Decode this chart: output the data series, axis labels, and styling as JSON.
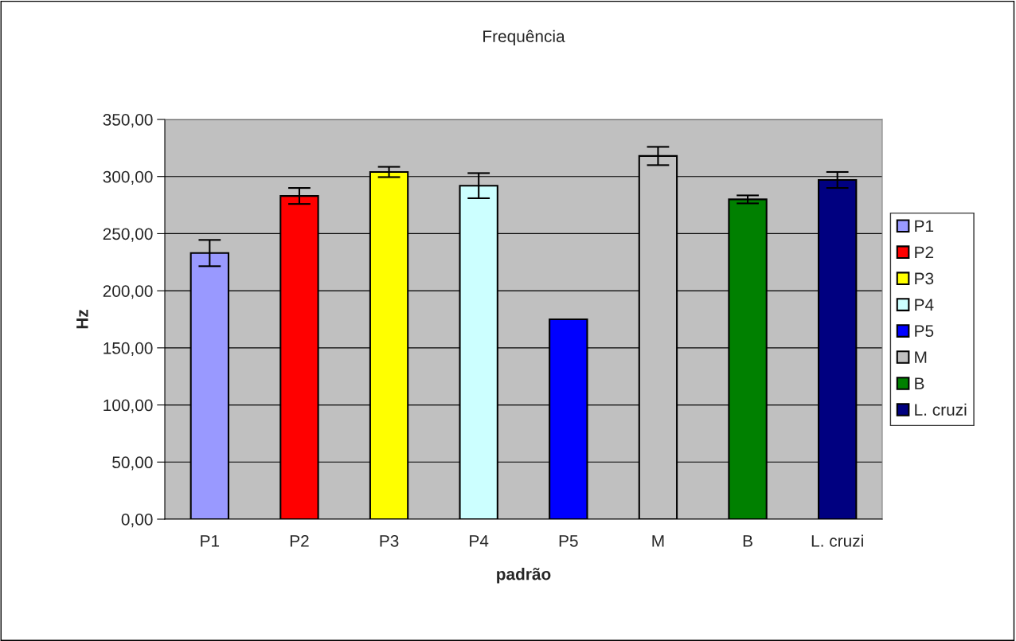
{
  "chart_data": {
    "type": "bar",
    "title": "Frequência",
    "xlabel": "padrão",
    "ylabel": "Hz",
    "categories": [
      "P1",
      "P2",
      "P3",
      "P4",
      "P5",
      "M",
      "B",
      "L. cruzi"
    ],
    "series": [
      {
        "name": "P1",
        "color": "#9999ff",
        "values": [
          233,
          null,
          null,
          null,
          null,
          null,
          null,
          null
        ],
        "errors": [
          11.5,
          null,
          null,
          null,
          null,
          null,
          null,
          null
        ]
      },
      {
        "name": "P2",
        "color": "#ff0000",
        "values": [
          null,
          283,
          null,
          null,
          null,
          null,
          null,
          null
        ],
        "errors": [
          null,
          7,
          null,
          null,
          null,
          null,
          null,
          null
        ]
      },
      {
        "name": "P3",
        "color": "#ffff00",
        "values": [
          null,
          null,
          304,
          null,
          null,
          null,
          null,
          null
        ],
        "errors": [
          null,
          null,
          4.5,
          null,
          null,
          null,
          null,
          null
        ]
      },
      {
        "name": "P4",
        "color": "#ccffff",
        "values": [
          null,
          null,
          null,
          292,
          null,
          null,
          null,
          null
        ],
        "errors": [
          null,
          null,
          null,
          11,
          null,
          null,
          null,
          null
        ]
      },
      {
        "name": "P5",
        "color": "#0000ff",
        "values": [
          null,
          null,
          null,
          null,
          175,
          null,
          null,
          null
        ]
      },
      {
        "name": "M",
        "color": "#c0c0c0",
        "values": [
          null,
          null,
          null,
          null,
          null,
          318,
          null,
          null
        ],
        "errors": [
          null,
          null,
          null,
          null,
          null,
          8,
          null,
          null
        ]
      },
      {
        "name": "B",
        "color": "#008000",
        "values": [
          null,
          null,
          null,
          null,
          null,
          null,
          280,
          null
        ],
        "errors": [
          null,
          null,
          null,
          null,
          null,
          null,
          3.5,
          null
        ]
      },
      {
        "name": "L. cruzi",
        "color": "#000080",
        "values": [
          null,
          null,
          null,
          null,
          null,
          null,
          null,
          297
        ],
        "errors": [
          null,
          null,
          null,
          null,
          null,
          null,
          null,
          7
        ]
      }
    ],
    "ylim": [
      0,
      350
    ],
    "yticks": [
      {
        "value": 0,
        "label": "0,00"
      },
      {
        "value": 50,
        "label": "50,00"
      },
      {
        "value": 100,
        "label": "100,00"
      },
      {
        "value": 150,
        "label": "150,00"
      },
      {
        "value": 200,
        "label": "200,00"
      },
      {
        "value": 250,
        "label": "250,00"
      },
      {
        "value": 300,
        "label": "300,00"
      },
      {
        "value": 350,
        "label": "350,00"
      }
    ],
    "grid": "y",
    "legend": "right"
  }
}
